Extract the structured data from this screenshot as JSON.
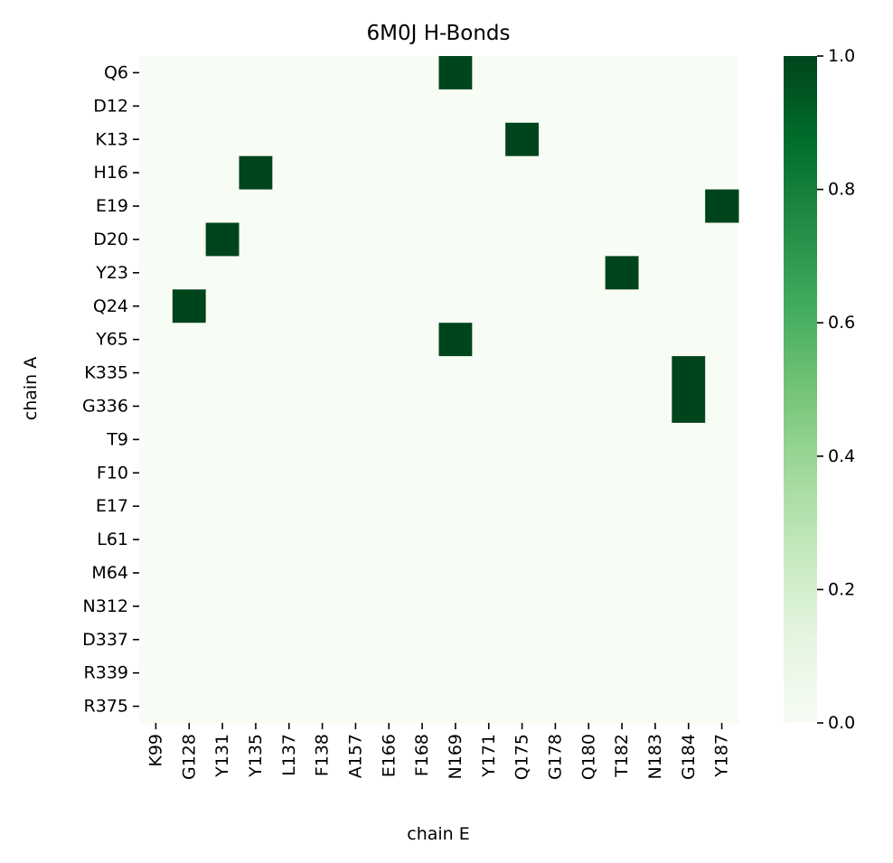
{
  "chart_data": {
    "type": "heatmap",
    "title": "6M0J H-Bonds",
    "xlabel": "chain E",
    "ylabel": "chain A",
    "x_categories": [
      "K99",
      "G128",
      "Y131",
      "Y135",
      "L137",
      "F138",
      "A157",
      "E166",
      "F168",
      "N169",
      "Y171",
      "Q175",
      "G178",
      "Q180",
      "T182",
      "N183",
      "G184",
      "Y187"
    ],
    "y_categories": [
      "Q6",
      "D12",
      "K13",
      "H16",
      "E19",
      "D20",
      "Y23",
      "Q24",
      "Y65",
      "K335",
      "G336",
      "T9",
      "F10",
      "E17",
      "L61",
      "M64",
      "N312",
      "D337",
      "R339",
      "R375"
    ],
    "values": [
      [
        0,
        0,
        0,
        0,
        0,
        0,
        0,
        0,
        0,
        1,
        0,
        0,
        0,
        0,
        0,
        0,
        0,
        0
      ],
      [
        0,
        0,
        0,
        0,
        0,
        0,
        0,
        0,
        0,
        0,
        0,
        0,
        0,
        0,
        0,
        0,
        0,
        0
      ],
      [
        0,
        0,
        0,
        0,
        0,
        0,
        0,
        0,
        0,
        0,
        0,
        1,
        0,
        0,
        0,
        0,
        0,
        0
      ],
      [
        0,
        0,
        0,
        1,
        0,
        0,
        0,
        0,
        0,
        0,
        0,
        0,
        0,
        0,
        0,
        0,
        0,
        0
      ],
      [
        0,
        0,
        0,
        0,
        0,
        0,
        0,
        0,
        0,
        0,
        0,
        0,
        0,
        0,
        0,
        0,
        0,
        1
      ],
      [
        0,
        0,
        1,
        0,
        0,
        0,
        0,
        0,
        0,
        0,
        0,
        0,
        0,
        0,
        0,
        0,
        0,
        0
      ],
      [
        0,
        0,
        0,
        0,
        0,
        0,
        0,
        0,
        0,
        0,
        0,
        0,
        0,
        0,
        1,
        0,
        0,
        0
      ],
      [
        0,
        1,
        0,
        0,
        0,
        0,
        0,
        0,
        0,
        0,
        0,
        0,
        0,
        0,
        0,
        0,
        0,
        0
      ],
      [
        0,
        0,
        0,
        0,
        0,
        0,
        0,
        0,
        0,
        1,
        0,
        0,
        0,
        0,
        0,
        0,
        0,
        0
      ],
      [
        0,
        0,
        0,
        0,
        0,
        0,
        0,
        0,
        0,
        0,
        0,
        0,
        0,
        0,
        0,
        0,
        1,
        0
      ],
      [
        0,
        0,
        0,
        0,
        0,
        0,
        0,
        0,
        0,
        0,
        0,
        0,
        0,
        0,
        0,
        0,
        1,
        0
      ],
      [
        0,
        0,
        0,
        0,
        0,
        0,
        0,
        0,
        0,
        0,
        0,
        0,
        0,
        0,
        0,
        0,
        0,
        0
      ],
      [
        0,
        0,
        0,
        0,
        0,
        0,
        0,
        0,
        0,
        0,
        0,
        0,
        0,
        0,
        0,
        0,
        0,
        0
      ],
      [
        0,
        0,
        0,
        0,
        0,
        0,
        0,
        0,
        0,
        0,
        0,
        0,
        0,
        0,
        0,
        0,
        0,
        0
      ],
      [
        0,
        0,
        0,
        0,
        0,
        0,
        0,
        0,
        0,
        0,
        0,
        0,
        0,
        0,
        0,
        0,
        0,
        0
      ],
      [
        0,
        0,
        0,
        0,
        0,
        0,
        0,
        0,
        0,
        0,
        0,
        0,
        0,
        0,
        0,
        0,
        0,
        0
      ],
      [
        0,
        0,
        0,
        0,
        0,
        0,
        0,
        0,
        0,
        0,
        0,
        0,
        0,
        0,
        0,
        0,
        0,
        0
      ],
      [
        0,
        0,
        0,
        0,
        0,
        0,
        0,
        0,
        0,
        0,
        0,
        0,
        0,
        0,
        0,
        0,
        0,
        0
      ],
      [
        0,
        0,
        0,
        0,
        0,
        0,
        0,
        0,
        0,
        0,
        0,
        0,
        0,
        0,
        0,
        0,
        0,
        0
      ],
      [
        0,
        0,
        0,
        0,
        0,
        0,
        0,
        0,
        0,
        0,
        0,
        0,
        0,
        0,
        0,
        0,
        0,
        0
      ]
    ],
    "vmin": 0,
    "vmax": 1,
    "colorbar_ticks": [
      "0.0",
      "0.2",
      "0.4",
      "0.6",
      "0.8",
      "1.0"
    ],
    "colormap": "Greens",
    "color_low": "#f7fcf5",
    "color_high": "#00441b",
    "grid": false,
    "legend": "colorbar-right"
  }
}
